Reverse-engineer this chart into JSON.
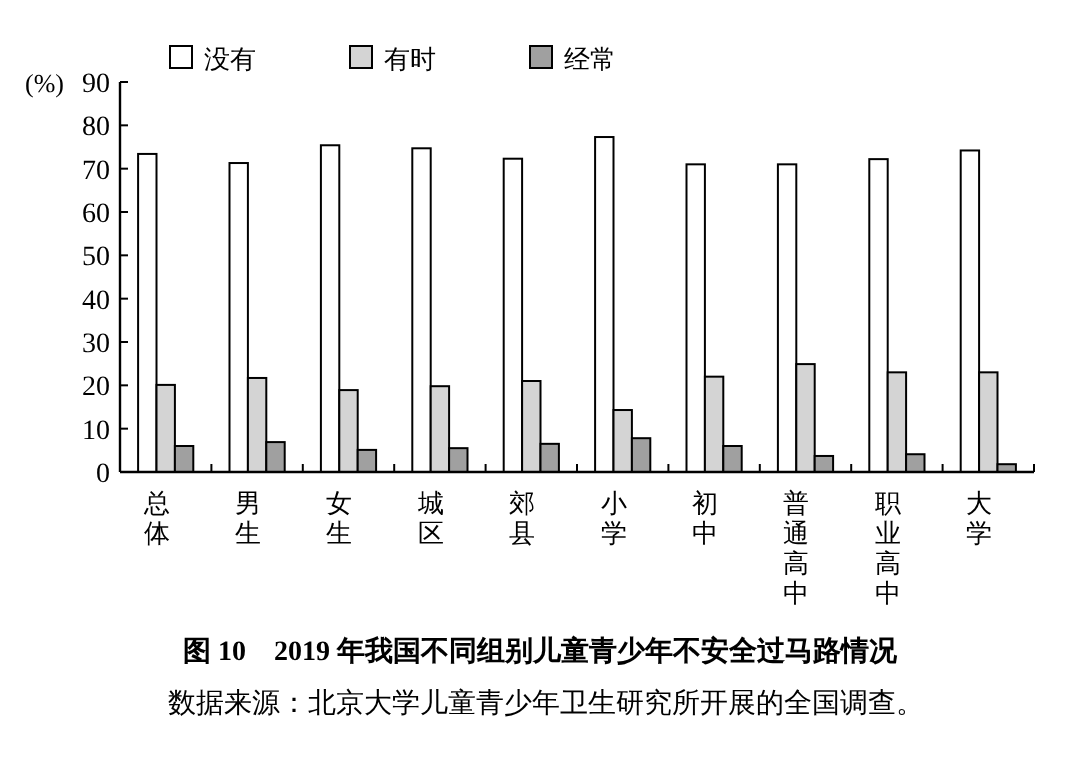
{
  "chart_data": {
    "type": "bar",
    "title": "图 10　2019 年我国不同组别儿童青少年不安全过马路情况",
    "ylabel": "(%)",
    "annotations": [
      "数据来源：北京大学儿童青少年卫生研究所开展的全国调查。"
    ],
    "categories": [
      "总体",
      "男生",
      "女生",
      "城区",
      "郊县",
      "小学",
      "初中",
      "普通高中",
      "职业高中",
      "大学"
    ],
    "series": [
      {
        "name": "没有",
        "color": "#ffffff",
        "values": [
          73.4,
          71.3,
          75.4,
          74.7,
          72.3,
          77.3,
          71.0,
          71.0,
          72.2,
          74.2
        ]
      },
      {
        "name": "有时",
        "color": "#d4d4d4",
        "values": [
          20.1,
          21.7,
          18.9,
          19.8,
          21.0,
          14.3,
          22.0,
          24.9,
          23.0,
          23.0
        ]
      },
      {
        "name": "经常",
        "color": "#a0a0a0",
        "values": [
          6.0,
          6.9,
          5.1,
          5.5,
          6.5,
          7.8,
          6.0,
          3.7,
          4.1,
          1.8
        ]
      }
    ],
    "ylim": [
      0,
      90
    ],
    "yticks": [
      0,
      10,
      20,
      30,
      40,
      50,
      60,
      70,
      80,
      90
    ],
    "grid": false,
    "legend": "top"
  }
}
